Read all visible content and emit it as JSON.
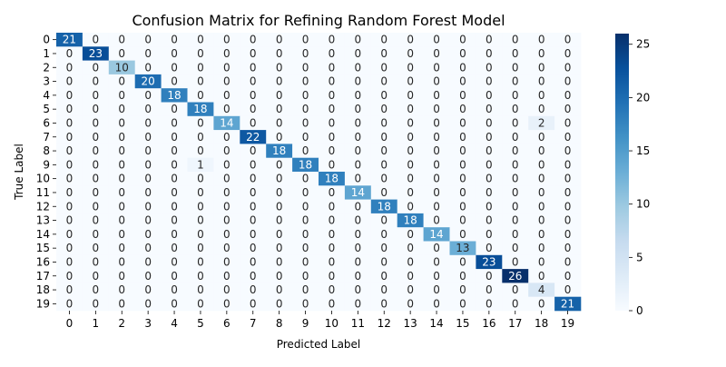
{
  "chart_data": {
    "type": "heatmap",
    "title": "Confusion Matrix for Refining Random Forest Model",
    "xlabel": "Predicted Label",
    "ylabel": "True Label",
    "x_categories": [
      "0",
      "1",
      "2",
      "3",
      "4",
      "5",
      "6",
      "7",
      "8",
      "9",
      "10",
      "11",
      "12",
      "13",
      "14",
      "15",
      "16",
      "17",
      "18",
      "19"
    ],
    "y_categories": [
      "0",
      "1",
      "2",
      "3",
      "4",
      "5",
      "6",
      "7",
      "8",
      "9",
      "10",
      "11",
      "12",
      "13",
      "14",
      "15",
      "16",
      "17",
      "18",
      "19"
    ],
    "matrix": [
      [
        21,
        0,
        0,
        0,
        0,
        0,
        0,
        0,
        0,
        0,
        0,
        0,
        0,
        0,
        0,
        0,
        0,
        0,
        0,
        0
      ],
      [
        0,
        23,
        0,
        0,
        0,
        0,
        0,
        0,
        0,
        0,
        0,
        0,
        0,
        0,
        0,
        0,
        0,
        0,
        0,
        0
      ],
      [
        0,
        0,
        10,
        0,
        0,
        0,
        0,
        0,
        0,
        0,
        0,
        0,
        0,
        0,
        0,
        0,
        0,
        0,
        0,
        0
      ],
      [
        0,
        0,
        0,
        20,
        0,
        0,
        0,
        0,
        0,
        0,
        0,
        0,
        0,
        0,
        0,
        0,
        0,
        0,
        0,
        0
      ],
      [
        0,
        0,
        0,
        0,
        18,
        0,
        0,
        0,
        0,
        0,
        0,
        0,
        0,
        0,
        0,
        0,
        0,
        0,
        0,
        0
      ],
      [
        0,
        0,
        0,
        0,
        0,
        18,
        0,
        0,
        0,
        0,
        0,
        0,
        0,
        0,
        0,
        0,
        0,
        0,
        0,
        0
      ],
      [
        0,
        0,
        0,
        0,
        0,
        0,
        14,
        0,
        0,
        0,
        0,
        0,
        0,
        0,
        0,
        0,
        0,
        0,
        2,
        0
      ],
      [
        0,
        0,
        0,
        0,
        0,
        0,
        0,
        22,
        0,
        0,
        0,
        0,
        0,
        0,
        0,
        0,
        0,
        0,
        0,
        0
      ],
      [
        0,
        0,
        0,
        0,
        0,
        0,
        0,
        0,
        18,
        0,
        0,
        0,
        0,
        0,
        0,
        0,
        0,
        0,
        0,
        0
      ],
      [
        0,
        0,
        0,
        0,
        0,
        1,
        0,
        0,
        0,
        18,
        0,
        0,
        0,
        0,
        0,
        0,
        0,
        0,
        0,
        0
      ],
      [
        0,
        0,
        0,
        0,
        0,
        0,
        0,
        0,
        0,
        0,
        18,
        0,
        0,
        0,
        0,
        0,
        0,
        0,
        0,
        0
      ],
      [
        0,
        0,
        0,
        0,
        0,
        0,
        0,
        0,
        0,
        0,
        0,
        14,
        0,
        0,
        0,
        0,
        0,
        0,
        0,
        0
      ],
      [
        0,
        0,
        0,
        0,
        0,
        0,
        0,
        0,
        0,
        0,
        0,
        0,
        18,
        0,
        0,
        0,
        0,
        0,
        0,
        0
      ],
      [
        0,
        0,
        0,
        0,
        0,
        0,
        0,
        0,
        0,
        0,
        0,
        0,
        0,
        18,
        0,
        0,
        0,
        0,
        0,
        0
      ],
      [
        0,
        0,
        0,
        0,
        0,
        0,
        0,
        0,
        0,
        0,
        0,
        0,
        0,
        0,
        14,
        0,
        0,
        0,
        0,
        0
      ],
      [
        0,
        0,
        0,
        0,
        0,
        0,
        0,
        0,
        0,
        0,
        0,
        0,
        0,
        0,
        0,
        13,
        0,
        0,
        0,
        0
      ],
      [
        0,
        0,
        0,
        0,
        0,
        0,
        0,
        0,
        0,
        0,
        0,
        0,
        0,
        0,
        0,
        0,
        23,
        0,
        0,
        0
      ],
      [
        0,
        0,
        0,
        0,
        0,
        0,
        0,
        0,
        0,
        0,
        0,
        0,
        0,
        0,
        0,
        0,
        0,
        26,
        0,
        0
      ],
      [
        0,
        0,
        0,
        0,
        0,
        0,
        0,
        0,
        0,
        0,
        0,
        0,
        0,
        0,
        0,
        0,
        0,
        0,
        4,
        0
      ],
      [
        0,
        0,
        0,
        0,
        0,
        0,
        0,
        0,
        0,
        0,
        0,
        0,
        0,
        0,
        0,
        0,
        0,
        0,
        0,
        21
      ]
    ],
    "colorbar": {
      "ticks": [
        "0",
        "5",
        "10",
        "15",
        "20",
        "25"
      ],
      "range": [
        0,
        26
      ]
    },
    "colormap": "Blues",
    "colormap_stops": [
      "#f7fbff",
      "#deebf7",
      "#c6dbef",
      "#9ecae1",
      "#6baed6",
      "#4292c6",
      "#2171b5",
      "#08519c",
      "#08306b"
    ],
    "annotations": true,
    "grid": false
  }
}
